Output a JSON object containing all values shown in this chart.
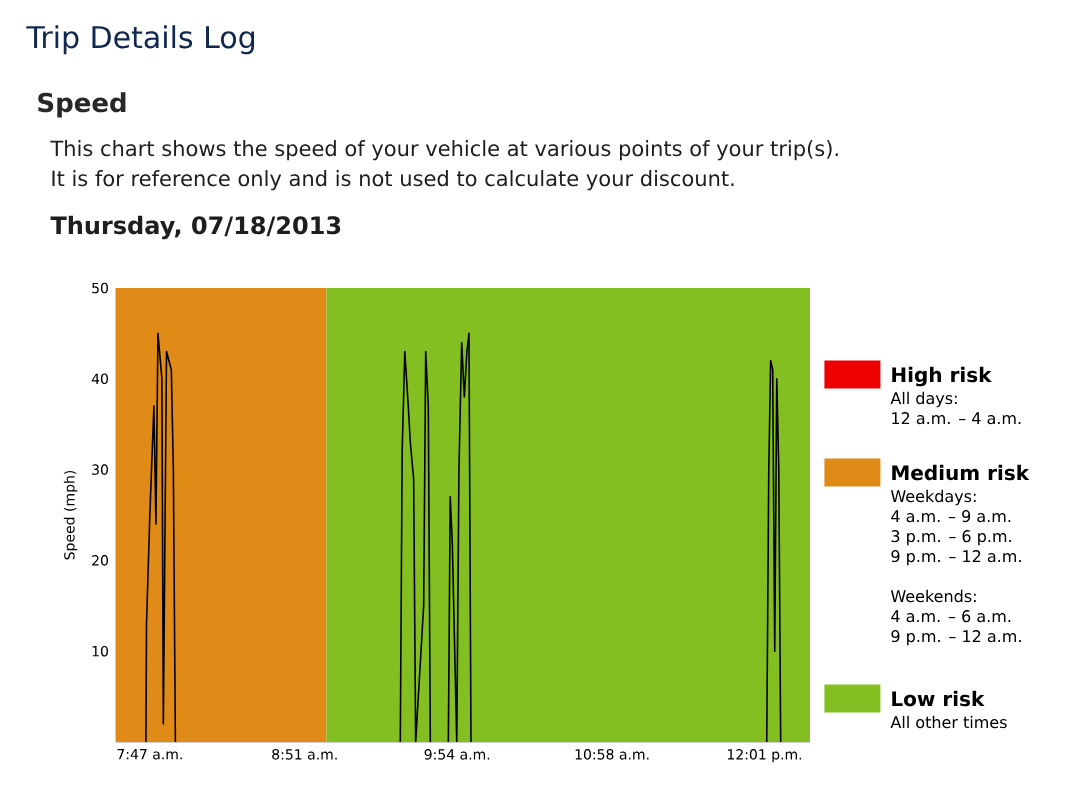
{
  "chart_data": {
    "type": "line",
    "title": "Trip Details Log",
    "subtitle": "Speed",
    "ylabel": "Speed (mph)",
    "annotations": [
      "This chart shows the speed of your vehicle at various points of your trip(s).",
      "It is for reference only and is not used to calculate your discount.",
      "Thursday, 07/18/2013",
      "High risk",
      "All days:",
      "12 a.m. – 4 a.m.",
      "Medium risk",
      "Weekdays:",
      "4 a.m. – 9 a.m.",
      "3 p.m. – 6 p.m.",
      "9 p.m. – 12 a.m.",
      "Weekends:",
      "4 a.m. – 6 a.m.",
      "9 p.m. – 12 a.m.",
      "Low risk",
      "All other times"
    ],
    "xlim": [
      7.55,
      12.33
    ],
    "ylim": [
      0,
      50
    ],
    "xticks": [
      {
        "value": 7.7833,
        "label": "7:47 a.m."
      },
      {
        "value": 8.85,
        "label": "8:51 a.m."
      },
      {
        "value": 9.9,
        "label": "9:54 a.m."
      },
      {
        "value": 10.9667,
        "label": "10:58 a.m."
      },
      {
        "value": 12.0167,
        "label": "12:01 p.m."
      }
    ],
    "yticks": [
      10,
      20,
      30,
      40,
      50
    ],
    "bands": [
      {
        "axis": "x",
        "from": 7.55,
        "to": 9,
        "color": "#e08a17"
      },
      {
        "axis": "x",
        "from": 9,
        "to": 12.33,
        "color": "#84bf22"
      }
    ],
    "grid": false,
    "marker": "none",
    "line_style": "solid",
    "series": [
      {
        "color": "#000000",
        "x": [
          7.756,
          7.76,
          7.783,
          7.811,
          7.825,
          7.839,
          7.866,
          7.876,
          7.898,
          7.931,
          7.945,
          7.959,
          8.7,
          9.508,
          9.521,
          9.539,
          9.563,
          9.577,
          9.6,
          9.614,
          9.669,
          9.683,
          9.701,
          9.715,
          9.78,
          9.839,
          9.852,
          9.866,
          9.897,
          9.912,
          9.931,
          9.949,
          9.967,
          9.981,
          9.995,
          11.0,
          12.032,
          12.046,
          12.059,
          12.073,
          12.087,
          12.101,
          12.115,
          12.128
        ],
        "values": [
          0,
          13,
          25,
          37,
          24,
          45,
          40,
          2,
          43,
          41,
          30,
          0,
          null,
          0,
          32,
          43,
          37,
          33,
          29,
          0,
          15,
          43,
          37,
          0,
          null,
          0,
          27,
          22,
          0,
          30,
          44,
          38,
          43,
          45,
          0,
          null,
          0,
          30,
          42,
          41,
          10,
          40,
          30,
          0
        ]
      }
    ]
  }
}
